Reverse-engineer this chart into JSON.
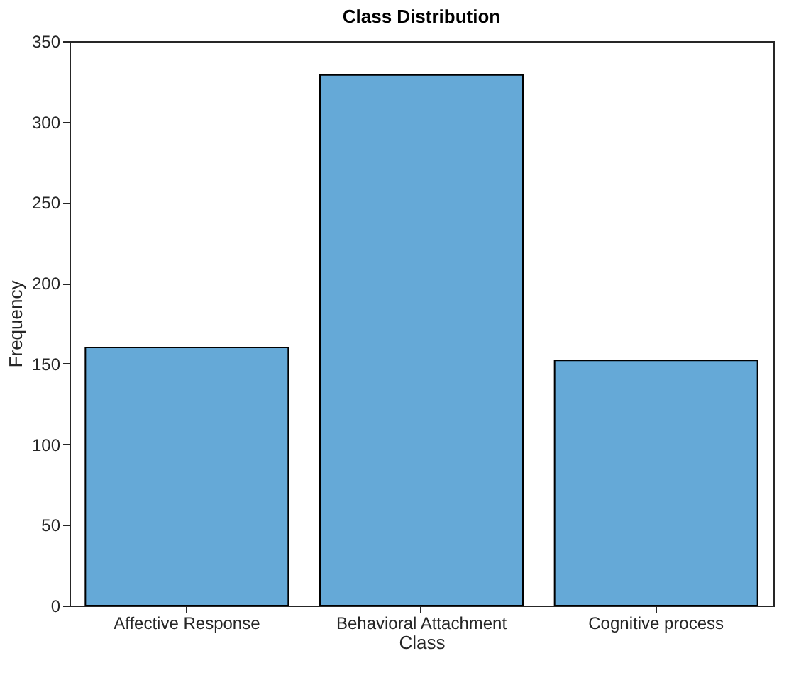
{
  "chart_data": {
    "type": "bar",
    "title": "Class Distribution",
    "xlabel": "Class",
    "ylabel": "Frequency",
    "categories": [
      "Affective Response",
      "Behavioral Attachment",
      "Cognitive process"
    ],
    "values": [
      160,
      329,
      152
    ],
    "color": "#65a9d7",
    "ylim": [
      0,
      350
    ],
    "yticks": [
      0,
      50,
      100,
      150,
      200,
      250,
      300,
      350
    ],
    "grid": false
  }
}
